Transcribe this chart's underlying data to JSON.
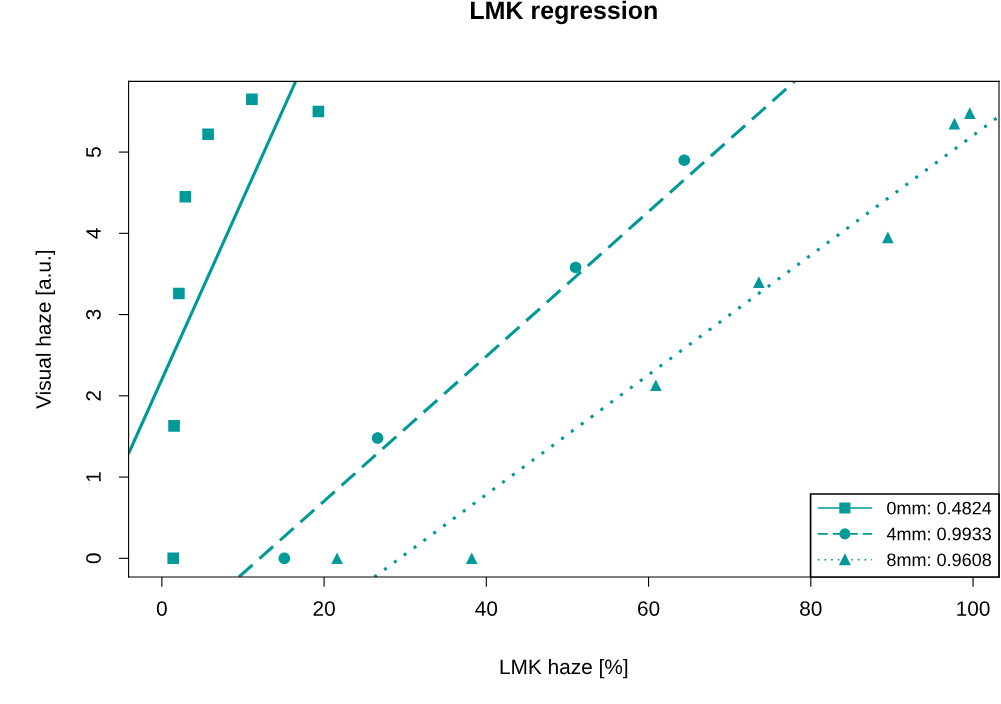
{
  "chart_data": {
    "type": "scatter",
    "title": "LMK regression",
    "xlabel": "LMK haze [%]",
    "ylabel": "Visual haze [a.u.]",
    "xlim": [
      -4.1,
      103.2
    ],
    "ylim": [
      -0.23,
      5.87
    ],
    "xticks": [
      0,
      20,
      40,
      60,
      80,
      100
    ],
    "yticks": [
      0,
      1,
      2,
      3,
      4,
      5
    ],
    "grid": false,
    "legend": "bottom right",
    "series": [
      {
        "name": "0mm: 0.4824",
        "color": "#009999",
        "marker": "square",
        "line_style": "solid",
        "x": [
          1.4,
          1.5,
          2.1,
          2.9,
          5.7,
          11.1,
          19.3
        ],
        "values": [
          0,
          1.63,
          3.26,
          4.45,
          5.22,
          5.65,
          5.5
        ]
      },
      {
        "name": "4mm: 0.9933",
        "color": "#009999",
        "marker": "circle",
        "line_style": "dashed",
        "x": [
          15.1,
          26.6,
          51.0,
          64.4
        ],
        "values": [
          0,
          1.48,
          3.58,
          4.9
        ]
      },
      {
        "name": "8mm: 0.9608",
        "color": "#009999",
        "marker": "triangle",
        "line_style": "dotted",
        "x": [
          21.6,
          38.2,
          60.9,
          73.6,
          89.5,
          97.7,
          99.6
        ],
        "values": [
          0,
          0,
          2.13,
          3.4,
          3.95,
          5.35,
          5.48
        ]
      },
      {
        "type": "line",
        "color": "#009999",
        "line_style": "solid",
        "marker": "none",
        "x": [
          -4.1,
          16.5
        ],
        "values": [
          1.29,
          5.87
        ]
      },
      {
        "type": "line",
        "color": "#009999",
        "line_style": "dashed",
        "marker": "none",
        "x": [
          9.5,
          78.0
        ],
        "values": [
          -0.23,
          5.87
        ]
      },
      {
        "type": "line",
        "color": "#009999",
        "line_style": "dotted",
        "marker": "none",
        "x": [
          26.2,
          103.2
        ],
        "values": [
          -0.23,
          5.44
        ]
      }
    ]
  }
}
